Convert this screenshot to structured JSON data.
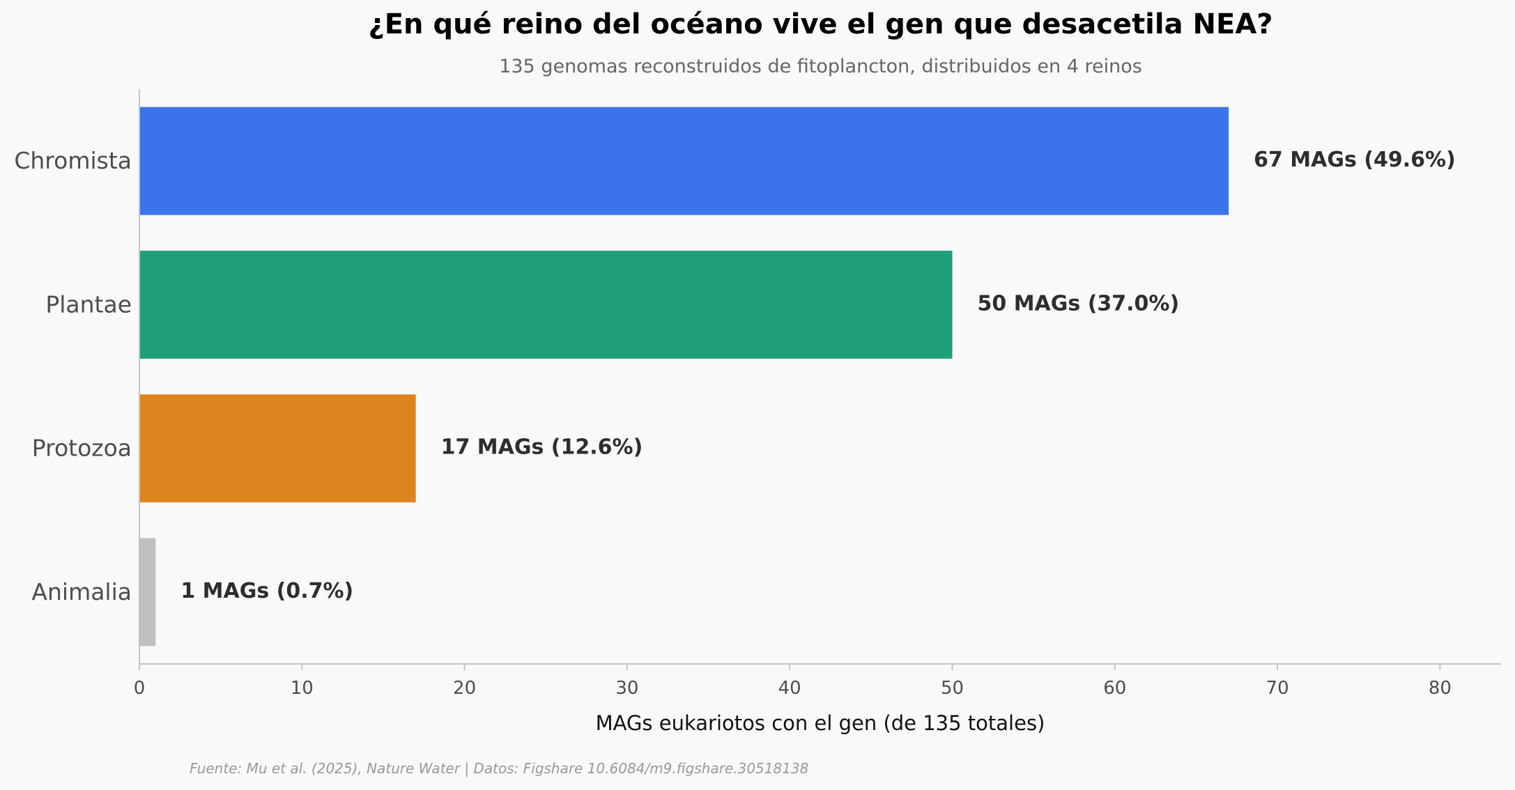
{
  "title": "¿En qué reino del océano vive el gen que desacetila NEA?",
  "subtitle": "135 genomas reconstruidos de fitoplancton, distribuidos en 4 reinos",
  "source": "Fuente: Mu et al. (2025), Nature Water | Datos: Figshare 10.6084/m9.figshare.30518138",
  "chart_data": {
    "type": "bar",
    "orientation": "horizontal",
    "categories": [
      "Chromista",
      "Plantae",
      "Protozoa",
      "Animalia"
    ],
    "values": [
      67,
      50,
      17,
      1
    ],
    "data_labels": [
      "67 MAGs (49.6%)",
      "50 MAGs (37.0%)",
      "17 MAGs (12.6%)",
      "1 MAGs (0.7%)"
    ],
    "colors": [
      "#3b73eb",
      "#1fa078",
      "#dc851f",
      "#c0c0c0"
    ],
    "xlabel": "MAGs eukariotos con el gen (de 135 totales)",
    "ylabel": "",
    "xlim": [
      0,
      84
    ],
    "xticks": [
      0,
      10,
      20,
      30,
      40,
      50,
      60,
      70,
      80
    ],
    "grid": false,
    "legend": "none"
  }
}
